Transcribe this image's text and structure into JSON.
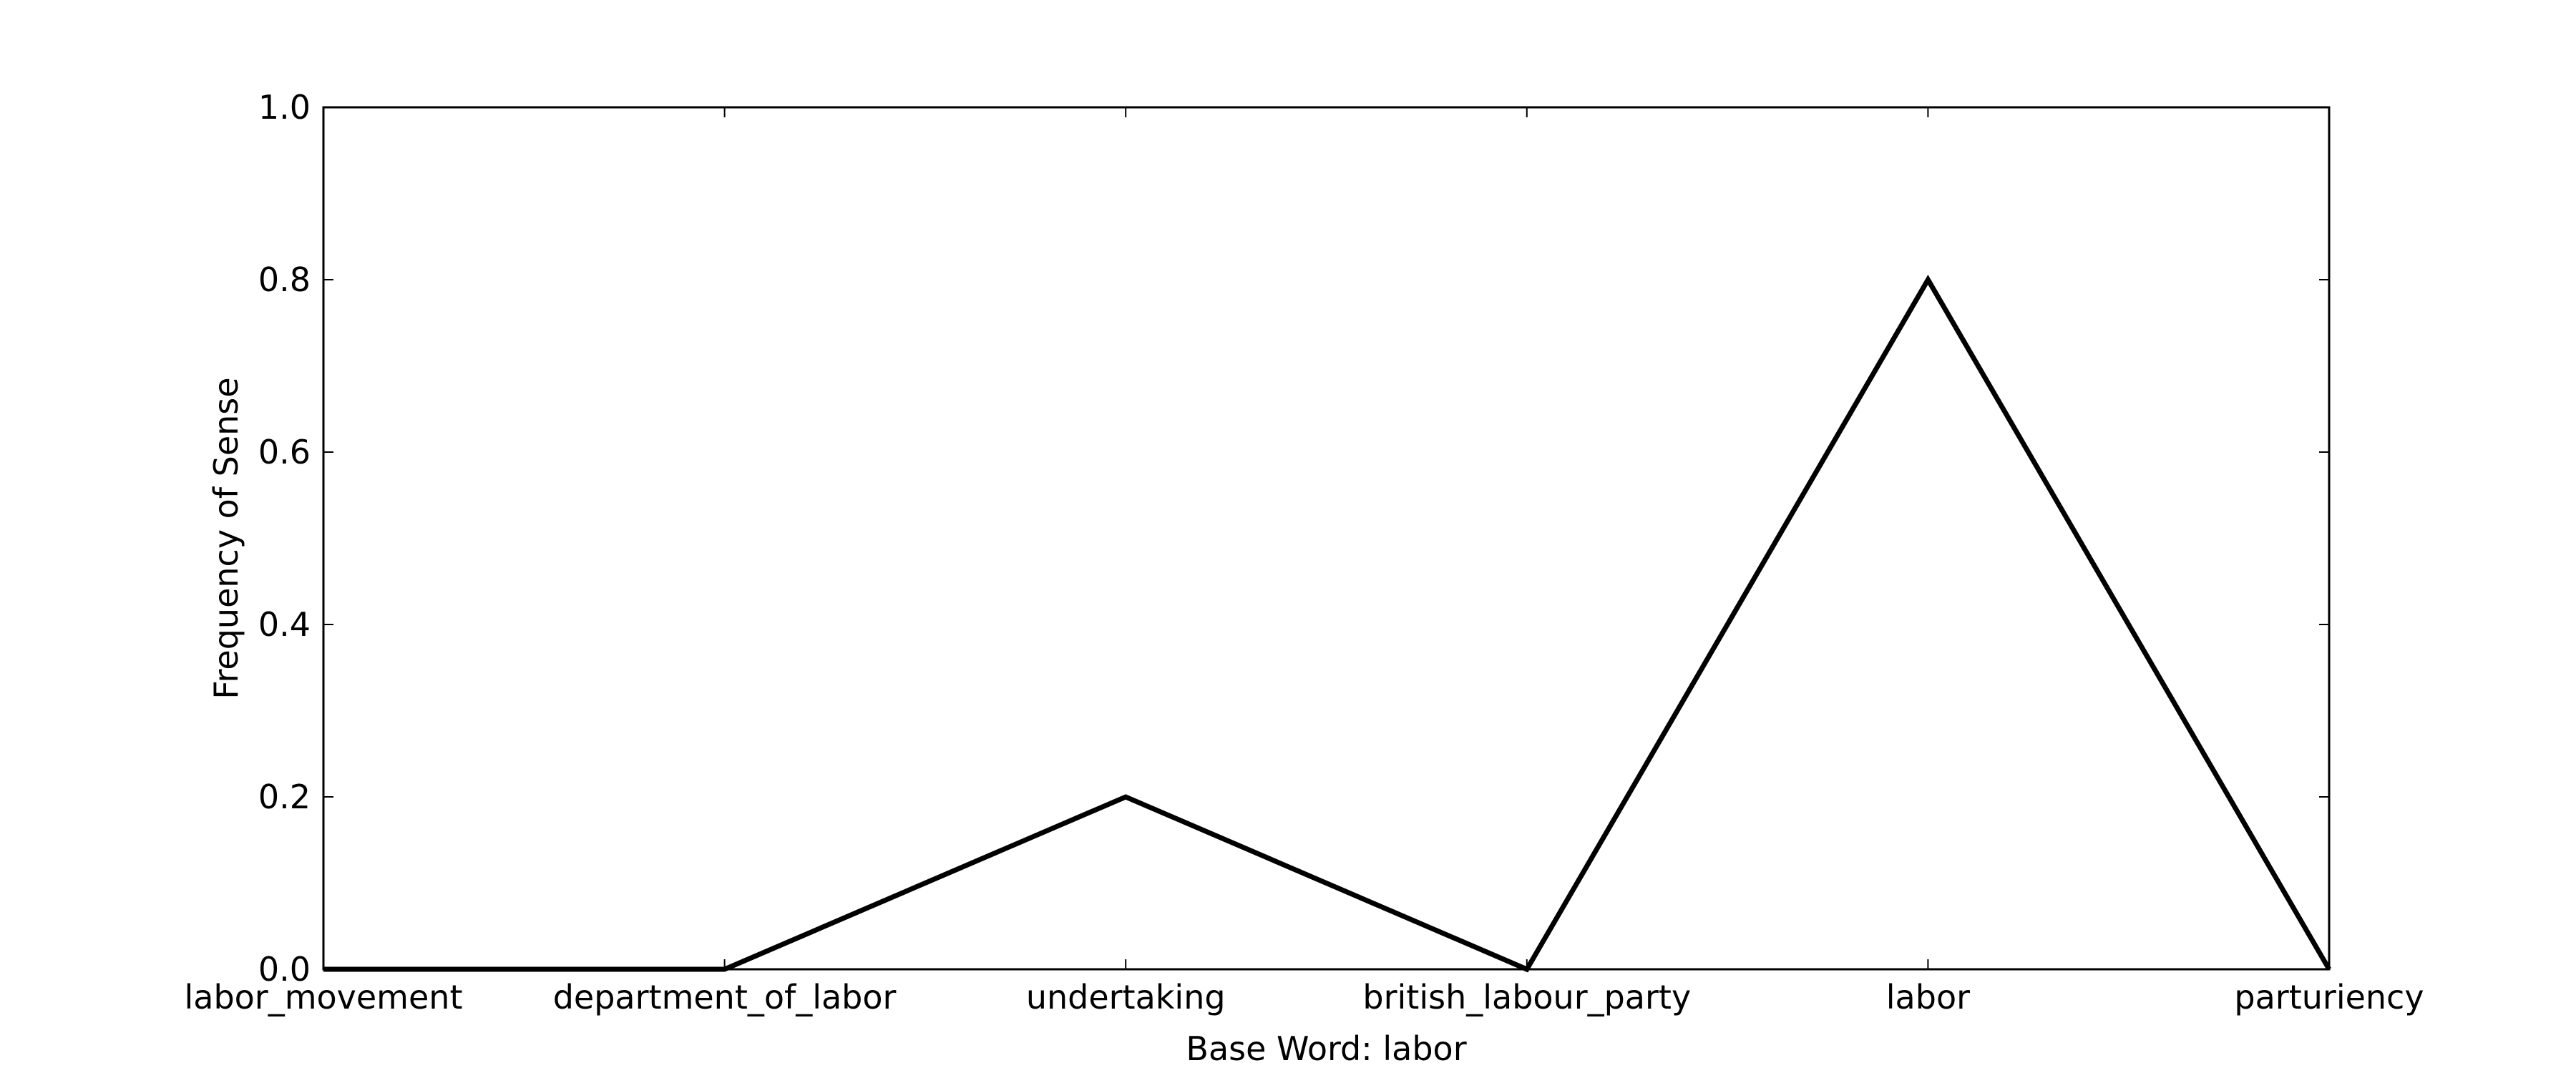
{
  "chart_data": {
    "type": "line",
    "categories": [
      "labor_movement",
      "department_of_labor",
      "undertaking",
      "british_labour_party",
      "labor",
      "parturiency"
    ],
    "series": [
      {
        "values": [
          0.0,
          0.0,
          0.2,
          0.0,
          0.8,
          0.0
        ]
      }
    ],
    "xlabel": "Base Word: labor",
    "ylabel": "Frequency of Sense",
    "ylim": [
      0.0,
      1.0
    ],
    "yticks": [
      "0.0",
      "0.2",
      "0.4",
      "0.6",
      "0.8",
      "1.0"
    ],
    "grid": false,
    "line_color": "#000000"
  }
}
